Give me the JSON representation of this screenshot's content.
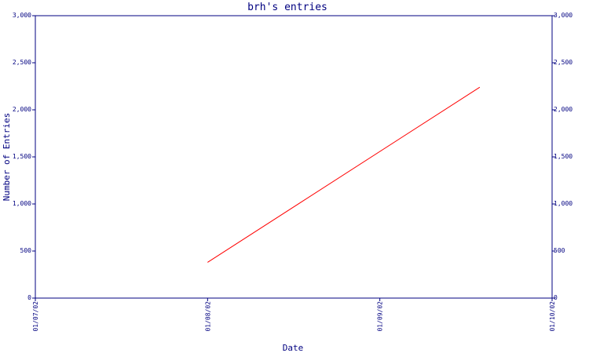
{
  "chart_data": {
    "type": "line",
    "title": "brh's entries",
    "xlabel": "Date",
    "ylabel": "Number of Entries",
    "x_ticks": [
      "01/07/02",
      "01/08/02",
      "01/09/02",
      "01/10/02"
    ],
    "y_ticks": [
      "0",
      "500",
      "1,000",
      "1,500",
      "2,000",
      "2,500",
      "3,000"
    ],
    "ylim": [
      0,
      3000
    ],
    "xlim": [
      "01/07/02",
      "01/10/02"
    ],
    "series": [
      {
        "x": [
          "01/08/02",
          "01/09/22"
        ],
        "values": [
          380,
          2240
        ]
      }
    ],
    "grid": false,
    "colors": {
      "axis": "#000080",
      "line": "#ff0000"
    }
  }
}
